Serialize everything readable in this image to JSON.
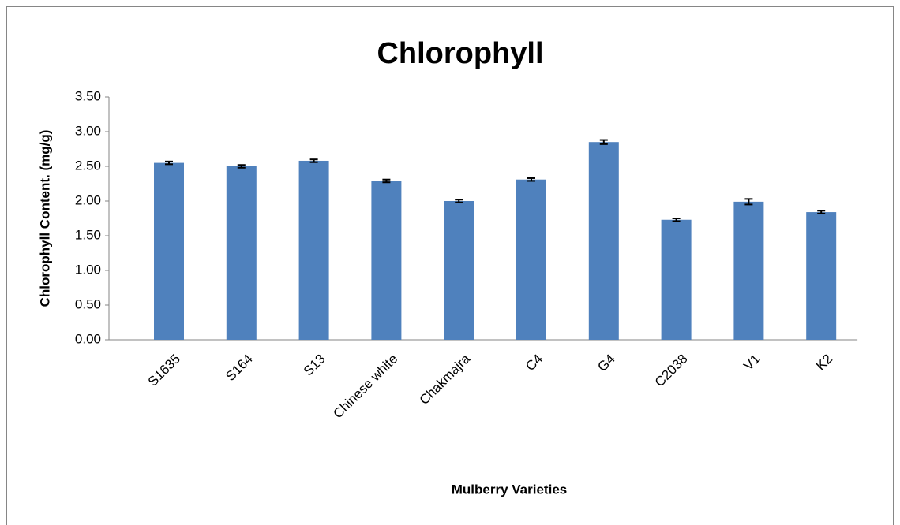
{
  "chart_data": {
    "type": "bar",
    "title": "Chlorophyll",
    "x_label": "Mulberry Varieties",
    "y_label": "Chlorophyll Content. (mg/g)",
    "categories": [
      "S1635",
      "S164",
      "S13",
      "Chinese white",
      "Chakmajra",
      "C4",
      "G4",
      "C2038",
      "V1",
      "K2"
    ],
    "values": [
      2.55,
      2.5,
      2.58,
      2.29,
      2.0,
      2.31,
      2.85,
      1.73,
      1.99,
      1.84
    ],
    "errors": [
      0.02,
      0.02,
      0.02,
      0.02,
      0.02,
      0.02,
      0.03,
      0.02,
      0.04,
      0.02
    ],
    "color": "#4f81bd",
    "ylim": [
      0,
      3.5
    ],
    "yticks": [
      {
        "value": 0,
        "label": "0.00"
      },
      {
        "value": 0.5,
        "label": "0.50"
      },
      {
        "value": 1,
        "label": "1.00"
      },
      {
        "value": 1.5,
        "label": "1.50"
      },
      {
        "value": 2,
        "label": "2.00"
      },
      {
        "value": 2.5,
        "label": "2.50"
      },
      {
        "value": 3,
        "label": "3.00"
      },
      {
        "value": 3.5,
        "label": "3.50"
      }
    ],
    "grid": false
  }
}
